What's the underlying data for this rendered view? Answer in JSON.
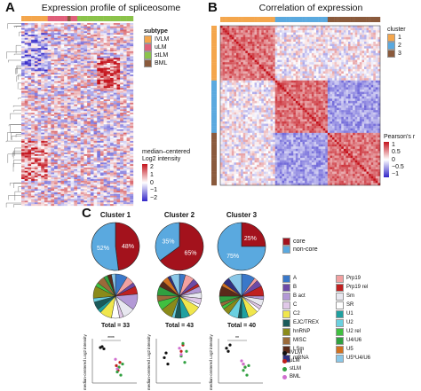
{
  "panel_a": {
    "letter": "A",
    "title": "Expression profile of spliceosome",
    "subtype_legend": {
      "title": "subtype",
      "items": [
        {
          "label": "IVLM",
          "color": "#f4a64c"
        },
        {
          "label": "uLM",
          "color": "#e0607a"
        },
        {
          "label": "stLM",
          "color": "#8bc34a"
        },
        {
          "label": "BML",
          "color": "#8a5a3c"
        }
      ]
    },
    "scale_legend": {
      "title_line1": "median–centered",
      "title_line2": "Log2 intensity",
      "ticks": [
        "2",
        "1",
        "0",
        "−1",
        "−2"
      ]
    }
  },
  "panel_b": {
    "letter": "B",
    "title": "Correlation of expression",
    "cluster_legend": {
      "title": "cluster",
      "items": [
        {
          "label": "1",
          "color": "#f4a64c"
        },
        {
          "label": "2",
          "color": "#5aa9df"
        },
        {
          "label": "3",
          "color": "#8a5a3c"
        }
      ]
    },
    "scale_legend": {
      "title": "Pearson's r",
      "ticks": [
        "1",
        "0.5",
        "0",
        "−0.5",
        "−1"
      ]
    }
  },
  "panel_c": {
    "letter": "C",
    "clusters": [
      {
        "title": "Cluster 1",
        "core_pct": 48,
        "noncore_pct": 52,
        "core_label": "48%",
        "noncore_label": "52%",
        "total": "Total = 33"
      },
      {
        "title": "Cluster 2",
        "core_pct": 65,
        "noncore_pct": 35,
        "core_label": "65%",
        "noncore_label": "35%",
        "total": "Total = 43"
      },
      {
        "title": "Cluster 3",
        "core_pct": 25,
        "noncore_pct": 75,
        "core_label": "25%",
        "noncore_label": "75%",
        "total": "Total = 40"
      }
    ],
    "core_legend": [
      {
        "label": "core",
        "color": "#a3121c"
      },
      {
        "label": "non-core",
        "color": "#5aa9df"
      }
    ],
    "complex_legend": [
      {
        "label": "A",
        "color": "#3a78c9"
      },
      {
        "label": "Prp19",
        "color": "#f2a0a0"
      },
      {
        "label": "B",
        "color": "#6d4aa6"
      },
      {
        "label": "Prp19 rel",
        "color": "#c02020"
      },
      {
        "label": "B act",
        "color": "#b399d6"
      },
      {
        "label": "Sm",
        "color": "#e8e8f0"
      },
      {
        "label": "C",
        "color": "#e0c8e8"
      },
      {
        "label": "SR",
        "color": "#ffffff"
      },
      {
        "label": "C2",
        "color": "#f0e64c"
      },
      {
        "label": "U1",
        "color": "#20a0a0"
      },
      {
        "label": "EJC/TREX",
        "color": "#1a5a5a"
      },
      {
        "label": "U2",
        "color": "#6ad0e0"
      },
      {
        "label": "hnRNP",
        "color": "#8a8a1a"
      },
      {
        "label": "U2 rel",
        "color": "#40c040"
      },
      {
        "label": "MISC",
        "color": "#9a6a3a"
      },
      {
        "label": "U4/U6",
        "color": "#30a040"
      },
      {
        "label": "LSm",
        "color": "#5a2a1a"
      },
      {
        "label": "U5",
        "color": "#d07020"
      },
      {
        "label": "mRNA",
        "color": "#303080"
      },
      {
        "label": "U5*U4/U6",
        "color": "#8ac8e8"
      }
    ],
    "dot_legend": [
      {
        "label": "IVLM",
        "color": "#111111"
      },
      {
        "label": "uLM",
        "color": "#c0201c"
      },
      {
        "label": "stLM",
        "color": "#30a040"
      },
      {
        "label": "BML",
        "color": "#d070d0"
      }
    ],
    "y_axis_label": "median-centered Log2 intensity",
    "significance": [
      "****",
      "",
      "**"
    ],
    "dot_data": [
      {
        "IVLM": [
          0.42,
          0.45,
          0.38
        ],
        "uLM": [
          -0.15,
          -0.3,
          -0.05
        ],
        "stLM": [
          -0.35,
          -0.2,
          -0.45,
          -0.1
        ],
        "BML": [
          0.05,
          -0.25
        ]
      },
      {
        "IVLM": [
          0.1,
          0.25,
          -0.1
        ],
        "uLM": [
          0.3,
          0.5
        ],
        "stLM": [
          0.15,
          0.55,
          -0.05,
          0.3
        ],
        "BML": [
          0.4,
          0.2
        ]
      },
      {
        "IVLM": [
          0.4,
          0.3,
          0.5
        ],
        "uLM": [
          -0.1,
          -0.2
        ],
        "stLM": [
          -0.3,
          -0.2,
          -0.45,
          -0.15
        ],
        "BML": [
          0.0,
          -0.1
        ]
      }
    ]
  }
}
